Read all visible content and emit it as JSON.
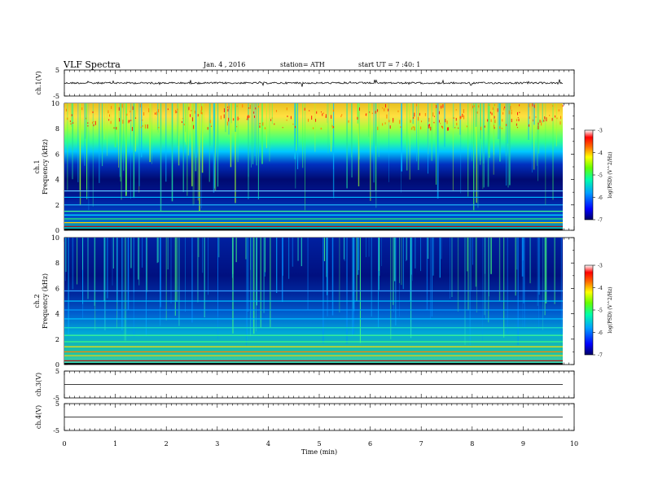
{
  "header": {
    "title": "VLF  Spectra",
    "date": "Jan. 4 , 2016",
    "station": "station= ATH",
    "start": "start  UT  =  7 :40: 1"
  },
  "chart_data": [
    {
      "type": "line",
      "ylabel": "ch.1(V)",
      "ylim": [
        -5,
        5
      ],
      "yticks": [
        "5",
        "-5"
      ],
      "baseline": 0,
      "description_of_series": "noise waveform around 0 V"
    },
    {
      "type": "heatmap",
      "ylabel_top": "ch.1",
      "ylabel": "Frequency (kHz)",
      "ylim": [
        0,
        10
      ],
      "yticks": [
        "0",
        "2",
        "4",
        "6",
        "8",
        "10"
      ],
      "xlim": [
        0,
        10
      ],
      "colorbar": {
        "label": "log(PSD) (V^2/Hz)",
        "range": [
          -7,
          -3
        ],
        "ticks": [
          "-3",
          "-4",
          "-5",
          "-6",
          "-7"
        ]
      }
    },
    {
      "type": "heatmap",
      "ylabel_top": "ch.2",
      "ylabel": "Frequency (kHz)",
      "ylim": [
        0,
        10
      ],
      "yticks": [
        "0",
        "2",
        "4",
        "6",
        "8",
        "10"
      ],
      "xlim": [
        0,
        10
      ],
      "colorbar": {
        "label": "log(PSD) (V^2/Hz)",
        "range": [
          -7,
          -3
        ],
        "ticks": [
          "-3",
          "-4",
          "-5",
          "-6",
          "-7"
        ]
      }
    },
    {
      "type": "line",
      "ylabel": "ch.3(V)",
      "ylim": [
        -5,
        5
      ],
      "yticks": [
        "5",
        "-5"
      ],
      "baseline": 0
    },
    {
      "type": "line",
      "ylabel": "ch.4(V)",
      "ylim": [
        -5,
        5
      ],
      "yticks": [
        "5",
        "-5"
      ],
      "baseline": 0
    }
  ],
  "xaxis": {
    "label": "Time  (min)",
    "range": [
      0,
      10
    ],
    "ticks": [
      "0",
      "1",
      "2",
      "3",
      "4",
      "5",
      "6",
      "7",
      "8",
      "9",
      "10"
    ]
  }
}
